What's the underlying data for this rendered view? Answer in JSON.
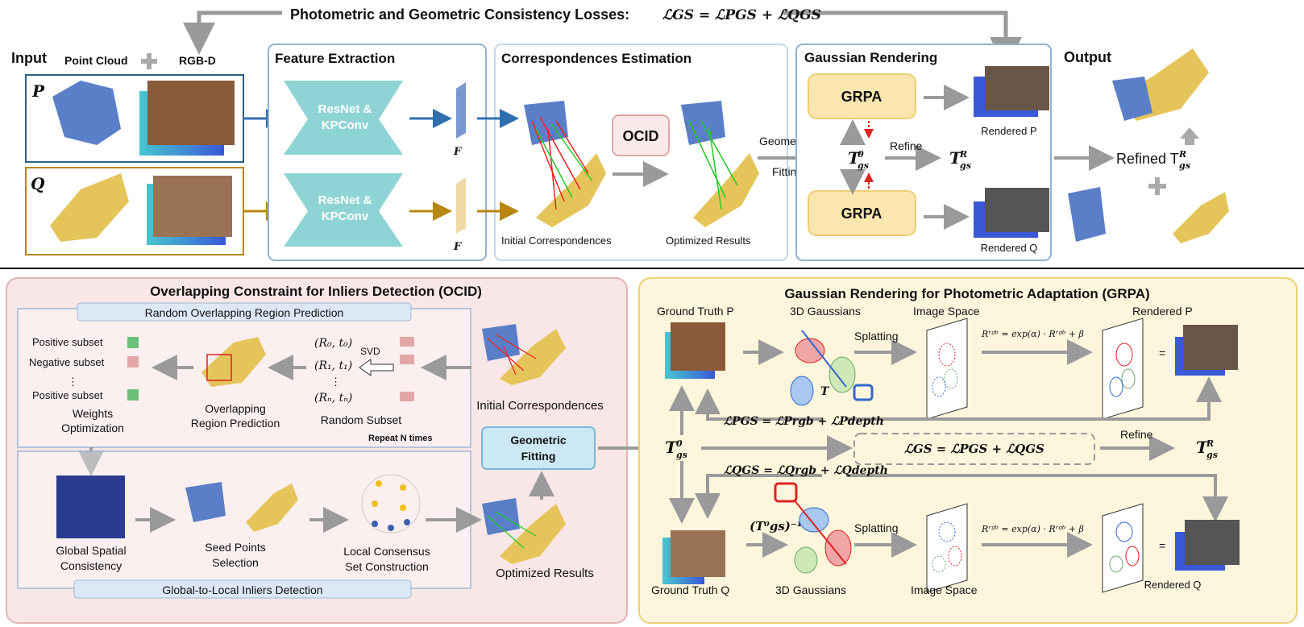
{
  "title": "Photometric and Geometric Consistency Losses:",
  "title_formula": "ℒGS = ℒPGS + ℒQGS",
  "top": {
    "input": "Input",
    "point_cloud": "Point Cloud",
    "rgbd": "RGB-D",
    "p": "P",
    "q": "Q",
    "feature_extraction": "Feature Extraction",
    "resnet1": "ResNet &",
    "kpconv1": "KPConv",
    "resnet2": "ResNet &",
    "kpconv2": "KPConv",
    "fp": "F",
    "fq": "F",
    "correspondences_estimation": "Correspondences Estimation",
    "ocid": "OCID",
    "initial_correspondences": "Initial Correspondences",
    "optimized_results": "Optimized Results",
    "geometric": "Geometric",
    "fitting": "Fitting",
    "gaussian_rendering": "Gaussian Rendering",
    "grpa1": "GRPA",
    "grpa2": "GRPA",
    "t0": "T",
    "refine": "Refine",
    "tr": "T",
    "rendered_p": "Rendered P",
    "rendered_q": "Rendered Q",
    "output": "Output",
    "refined": "Refined T"
  },
  "ocid": {
    "title": "Overlapping Constraint for Inliers Detection (OCID)",
    "random_region": "Random Overlapping Region Prediction",
    "pos1": "Positive subset",
    "neg": "Negative subset",
    "dots": "⋮",
    "pos2": "Positive subset",
    "weights1": "Weights",
    "weights2": "Optimization",
    "overlap1": "Overlapping",
    "overlap2": "Region Prediction",
    "r0": "(R₀, t₀)",
    "r1": "(R₁, t₁)",
    "rn": "(Rₙ, tₙ)",
    "svd": "SVD",
    "random_subset": "Random Subset",
    "repeat": "Repeat N times",
    "initial_corr": "Initial Correspondences",
    "geo1": "Geometric",
    "geo2": "Fitting",
    "global1": "Global Spatial",
    "global2": "Consistency",
    "seed1": "Seed Points",
    "seed2": "Selection",
    "local1": "Local Consensus",
    "local2": "Set Construction",
    "optimized": "Optimized Results",
    "g2l": "Global-to-Local Inliers Detection"
  },
  "grpa": {
    "title": "Gaussian Rendering for Photometric Adaptation (GRPA)",
    "gt_p": "Ground Truth P",
    "gaussians1": "3D Gaussians",
    "image_space1": "Image Space",
    "splatting1": "Splatting",
    "formula1": "Rʳᵍᵇ = exp(α) · Rʳᵍᵇ + β",
    "rendered_p": "Rendered P",
    "eq": "=",
    "loss_p": "ℒPGS = ℒPrgb + ℒPdepth",
    "t0": "T",
    "loss_total": "ℒGS = ℒPGS + ℒQGS",
    "refine": "Refine",
    "tr": "T",
    "loss_q": "ℒQGS = ℒQrgb + ℒQdepth",
    "tinv": "(T⁰gs)⁻¹",
    "splatting2": "Splatting",
    "formula2": "Rʳᵍᵇ = exp(α) · Rʳᵍᵇ + β",
    "gt_q": "Ground Truth Q",
    "gaussians2": "3D Gaussians",
    "image_space2": "Image Space",
    "rendered_q": "Rendered Q"
  },
  "colors": {
    "blue_arrow": "#2f6fb0",
    "gold_arrow": "#b8870f",
    "teal": "#8fd4d4",
    "ocid_bg": "#f9e6e6",
    "grpa_bg": "#fdf6dc",
    "grpa_box": "#fbe6b0"
  }
}
